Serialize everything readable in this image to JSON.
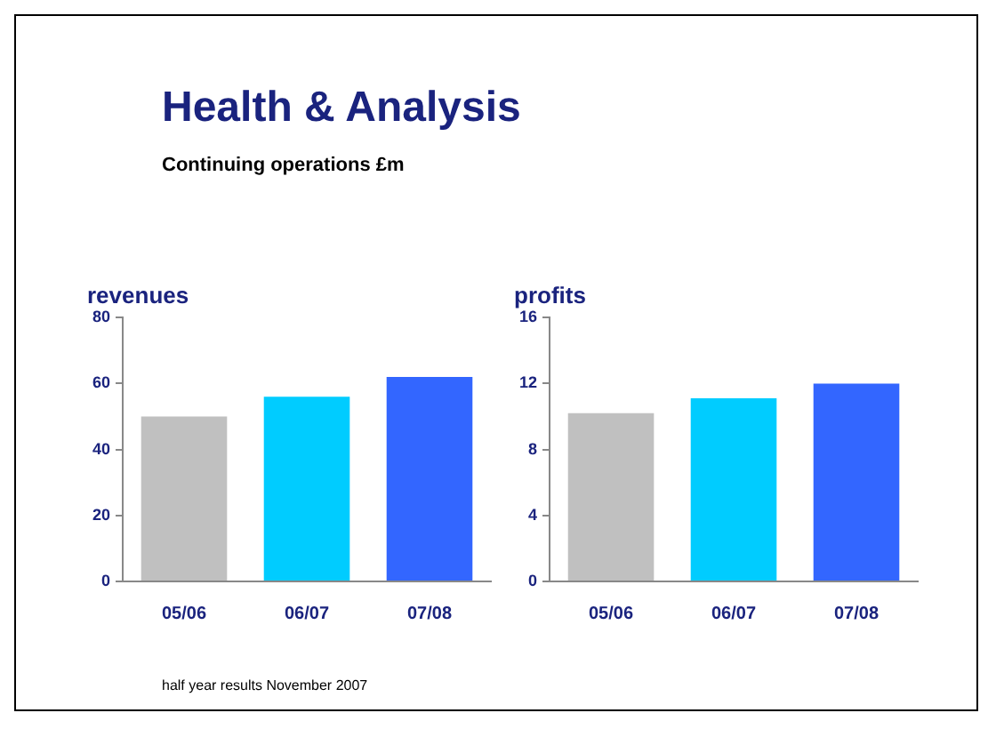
{
  "chart_data": [
    {
      "type": "bar",
      "title": "revenues",
      "annotations": [
        "Health & Analysis",
        "Continuing operations £m"
      ],
      "categories": [
        "05/06",
        "06/07",
        "07/08"
      ],
      "values": [
        50,
        56,
        62
      ],
      "colors": [
        "#c0c0c0",
        "#00ccff",
        "#3366ff"
      ],
      "ylim": [
        0,
        80
      ],
      "yticks": [
        0,
        20,
        40,
        60,
        80
      ],
      "grid": false,
      "legend": false
    },
    {
      "type": "bar",
      "title": "profits",
      "annotations": [
        "half year results November 2007"
      ],
      "categories": [
        "05/06",
        "06/07",
        "07/08"
      ],
      "values": [
        10.2,
        11.1,
        12.0
      ],
      "colors": [
        "#c0c0c0",
        "#00ccff",
        "#3366ff"
      ],
      "ylim": [
        0,
        16
      ],
      "yticks": [
        0,
        4,
        8,
        12,
        16
      ],
      "grid": false,
      "legend": false
    }
  ]
}
